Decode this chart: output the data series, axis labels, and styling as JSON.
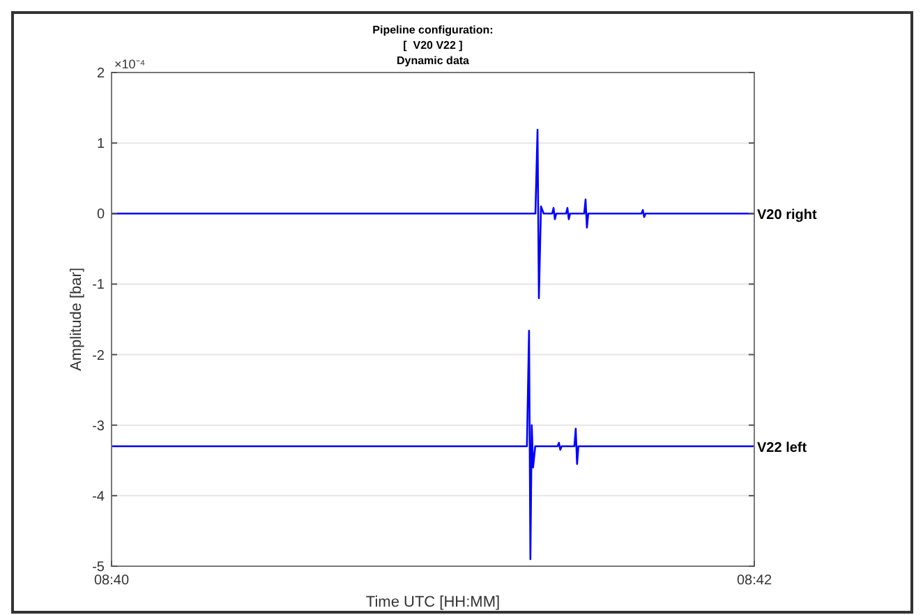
{
  "chart_data": {
    "type": "line",
    "title": "Pipeline configuration:",
    "subtitle": "[  V20 V22 ]\nDynamic data",
    "xlabel": "Time UTC [HH:MM]",
    "ylabel": "Amplitude [bar]",
    "annotations": [
      "×10⁻⁴"
    ],
    "xlim": [
      8.66667,
      8.7
    ],
    "xticks": [
      {
        "value": 8.66667,
        "label": "08:40"
      },
      {
        "value": 8.7,
        "label": "08:42"
      }
    ],
    "ylim": [
      -5,
      2
    ],
    "yticks": [
      -5,
      -4,
      -3,
      -2,
      -1,
      0,
      1,
      2
    ],
    "grid": "y",
    "line_style": "solid",
    "marker": "none",
    "series": [
      {
        "name": "V20 right",
        "color": "#0000ff",
        "x": [
          8.66667,
          8.68865,
          8.68876,
          8.68883,
          8.68894,
          8.68908,
          8.68952,
          8.68959,
          8.68966,
          8.68973,
          8.69024,
          8.69031,
          8.69038,
          8.69045,
          8.69118,
          8.69125,
          8.69132,
          8.69139,
          8.69415,
          8.69422,
          8.69429,
          8.69436,
          8.7
        ],
        "values": [
          0,
          0,
          1.19,
          -1.2,
          0.1,
          0,
          0,
          0.08,
          -0.08,
          0,
          0,
          0.08,
          -0.08,
          0,
          0,
          0.2,
          -0.2,
          0,
          0,
          0.05,
          -0.05,
          0,
          0
        ]
      },
      {
        "name": "V22 left",
        "color": "#0000ff",
        "x": [
          8.66667,
          8.68821,
          8.68832,
          8.68839,
          8.68846,
          8.68853,
          8.68864,
          8.6898,
          8.68987,
          8.68994,
          8.69001,
          8.69067,
          8.69074,
          8.69081,
          8.69088,
          8.7
        ],
        "values": [
          -3.3,
          -3.3,
          -1.66,
          -4.9,
          -3,
          -3.6,
          -3.3,
          -3.3,
          -3.25,
          -3.35,
          -3.3,
          -3.3,
          -3.05,
          -3.55,
          -3.3,
          -3.3
        ]
      }
    ]
  }
}
